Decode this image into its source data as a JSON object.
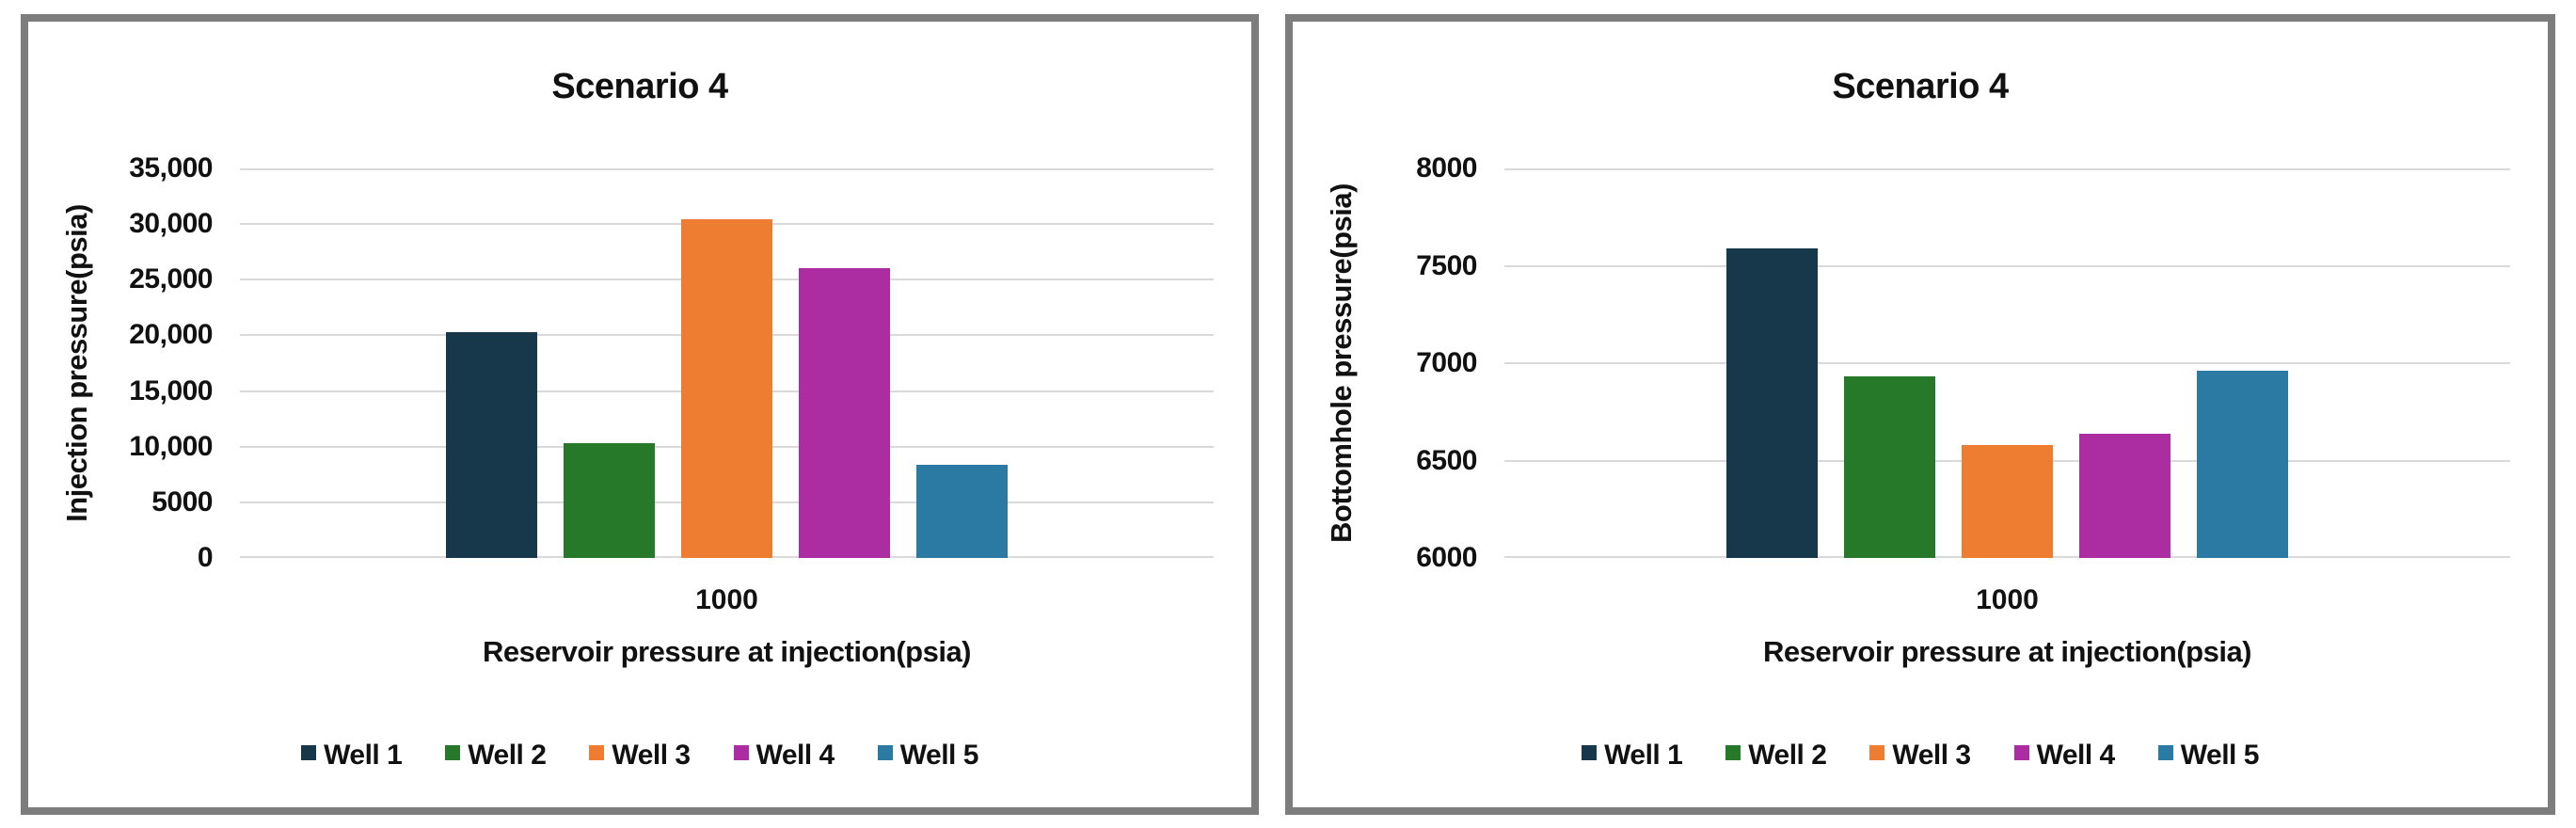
{
  "style": {
    "frame_color": "#7d7d7d",
    "gridline_color": "#d9d9d9",
    "text_color": "#111111",
    "background_color": "#ffffff"
  },
  "chart_data": [
    {
      "type": "bar",
      "title": "Scenario 4",
      "xlabel": "Reservoir pressure at injection(psia)",
      "ylabel": "Injection pressure(psia)",
      "categories": [
        "1000"
      ],
      "series": [
        {
          "name": "Well 1",
          "values": [
            20300
          ],
          "color": "#16384a"
        },
        {
          "name": "Well 2",
          "values": [
            10300
          ],
          "color": "#27792a"
        },
        {
          "name": "Well 3",
          "values": [
            30400
          ],
          "color": "#ee7d31"
        },
        {
          "name": "Well 4",
          "values": [
            26000
          ],
          "color": "#ac2da2"
        },
        {
          "name": "Well 5",
          "values": [
            8400
          ],
          "color": "#2a7aa4"
        }
      ],
      "ylim": [
        0,
        35000
      ],
      "ytick_interval": 5000,
      "ytick_labels": [
        "35,000",
        "30,000",
        "25,000",
        "20,000",
        "15,000",
        "10,000",
        "5000",
        "0"
      ],
      "grid": true,
      "legend_position": "bottom"
    },
    {
      "type": "bar",
      "title": "Scenario 4",
      "xlabel": "Reservoir pressure at injection(psia)",
      "ylabel": "Bottomhole pressure(psia)",
      "categories": [
        "1000"
      ],
      "series": [
        {
          "name": "Well 1",
          "values": [
            7590
          ],
          "color": "#16384a"
        },
        {
          "name": "Well 2",
          "values": [
            6930
          ],
          "color": "#27792a"
        },
        {
          "name": "Well 3",
          "values": [
            6580
          ],
          "color": "#ee7d31"
        },
        {
          "name": "Well 4",
          "values": [
            6640
          ],
          "color": "#ac2da2"
        },
        {
          "name": "Well 5",
          "values": [
            6960
          ],
          "color": "#2a7aa4"
        }
      ],
      "ylim": [
        6000,
        8000
      ],
      "ytick_interval": 500,
      "ytick_labels": [
        "8000",
        "7500",
        "7000",
        "6500",
        "6000"
      ],
      "grid": true,
      "legend_position": "bottom"
    }
  ]
}
